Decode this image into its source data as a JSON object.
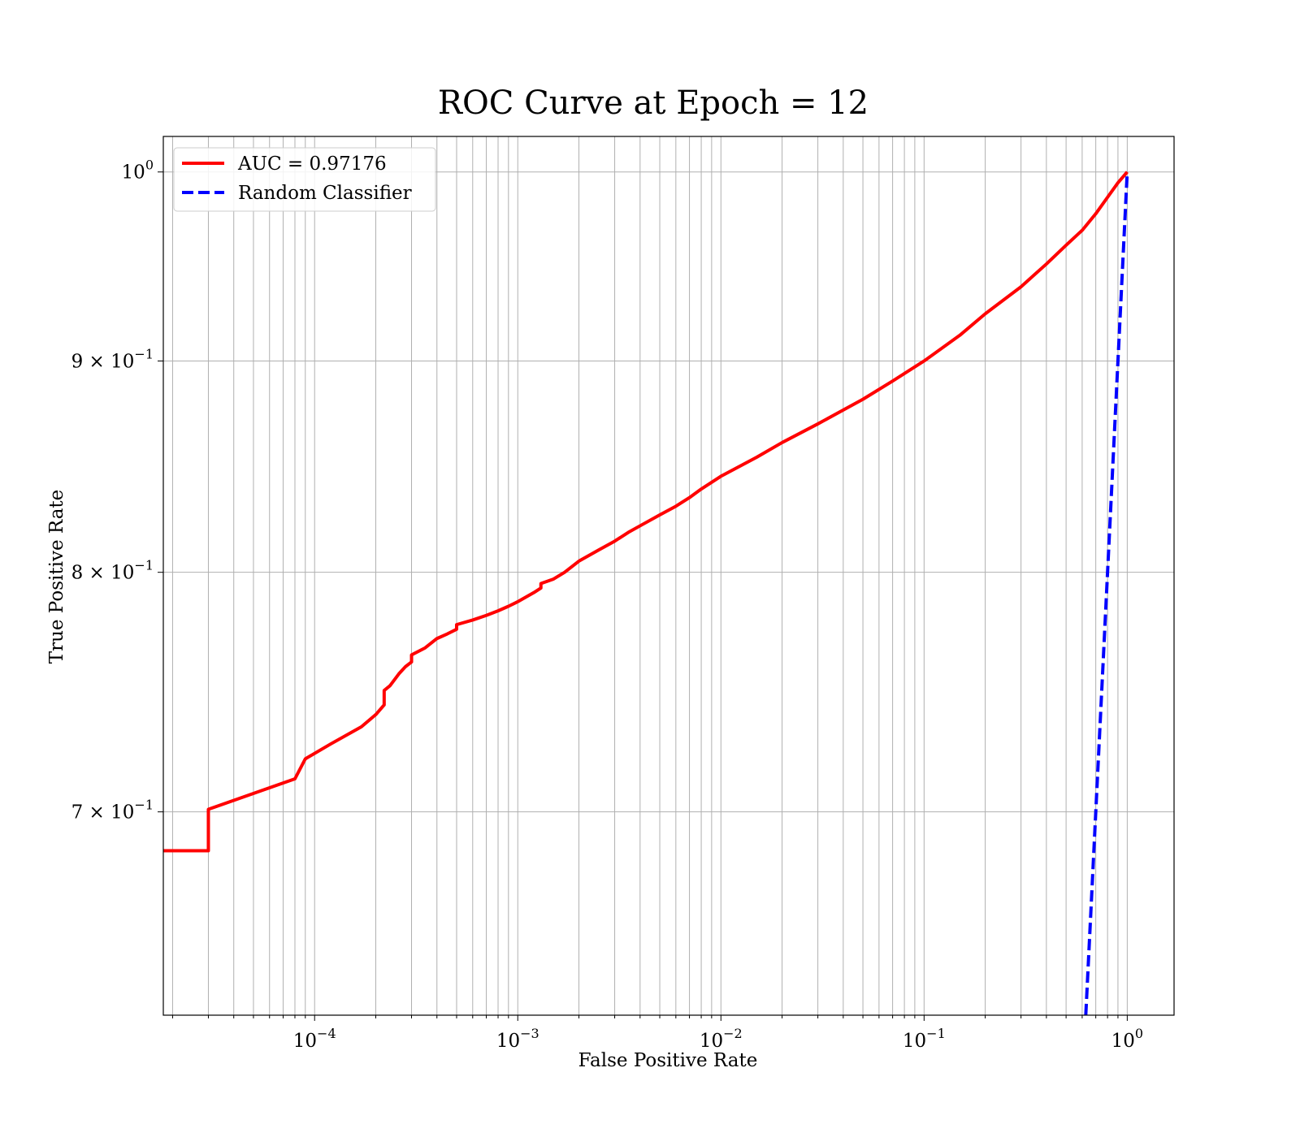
{
  "chart_data": {
    "type": "line",
    "title": "ROC Curve at Epoch = 12",
    "xlabel": "False Positive Rate",
    "ylabel": "True Positive Rate",
    "xscale": "log",
    "yscale": "log",
    "xlim": [
      1.8e-05,
      1.7
    ],
    "ylim": [
      0.625,
      1.02
    ],
    "grid": "both",
    "legend_position": "top-left",
    "x_ticks": [
      {
        "value": 0.0001,
        "base": "10",
        "exp": "−4"
      },
      {
        "value": 0.001,
        "base": "10",
        "exp": "−3"
      },
      {
        "value": 0.01,
        "base": "10",
        "exp": "−2"
      },
      {
        "value": 0.1,
        "base": "10",
        "exp": "−1"
      },
      {
        "value": 1,
        "base": "10",
        "exp": "0"
      }
    ],
    "y_ticks": [
      {
        "value": 1.0,
        "base": "10",
        "exp": "0"
      },
      {
        "value": 0.9,
        "base": "9 × 10",
        "exp": "−1"
      },
      {
        "value": 0.8,
        "base": "8 × 10",
        "exp": "−1"
      },
      {
        "value": 0.7,
        "base": "7 × 10",
        "exp": "−1"
      }
    ],
    "series": [
      {
        "name": "AUC = 0.97176",
        "color": "#ff0000",
        "style": "solid",
        "x": [
          1.8e-05,
          3e-05,
          3e-05,
          8e-05,
          9e-05,
          0.00012,
          0.00017,
          0.0002,
          0.00022,
          0.00022,
          0.000235,
          0.00026,
          0.00028,
          0.0003,
          0.0003,
          0.00035,
          0.0004,
          0.00045,
          0.0005,
          0.0005,
          0.0006,
          0.0007,
          0.0008,
          0.0009,
          0.001,
          0.0012,
          0.0013,
          0.0013,
          0.0015,
          0.0017,
          0.002,
          0.0025,
          0.003,
          0.0035,
          0.004,
          0.005,
          0.006,
          0.007,
          0.008,
          0.01,
          0.015,
          0.02,
          0.03,
          0.05,
          0.07,
          0.1,
          0.15,
          0.2,
          0.3,
          0.4,
          0.5,
          0.6,
          0.7,
          0.8,
          0.9,
          1.0
        ],
        "y": [
          0.685,
          0.685,
          0.701,
          0.713,
          0.721,
          0.727,
          0.734,
          0.739,
          0.743,
          0.749,
          0.751,
          0.756,
          0.759,
          0.761,
          0.764,
          0.767,
          0.771,
          0.773,
          0.775,
          0.777,
          0.779,
          0.781,
          0.783,
          0.785,
          0.787,
          0.791,
          0.793,
          0.795,
          0.797,
          0.8,
          0.805,
          0.81,
          0.814,
          0.818,
          0.821,
          0.826,
          0.83,
          0.834,
          0.838,
          0.844,
          0.853,
          0.86,
          0.869,
          0.881,
          0.89,
          0.9,
          0.913,
          0.924,
          0.938,
          0.95,
          0.96,
          0.968,
          0.977,
          0.986,
          0.994,
          1.0
        ]
      },
      {
        "name": "Random Classifier",
        "color": "#0000ff",
        "style": "dashed",
        "x": [
          0.625,
          1.0
        ],
        "y": [
          0.625,
          1.0
        ]
      }
    ]
  }
}
